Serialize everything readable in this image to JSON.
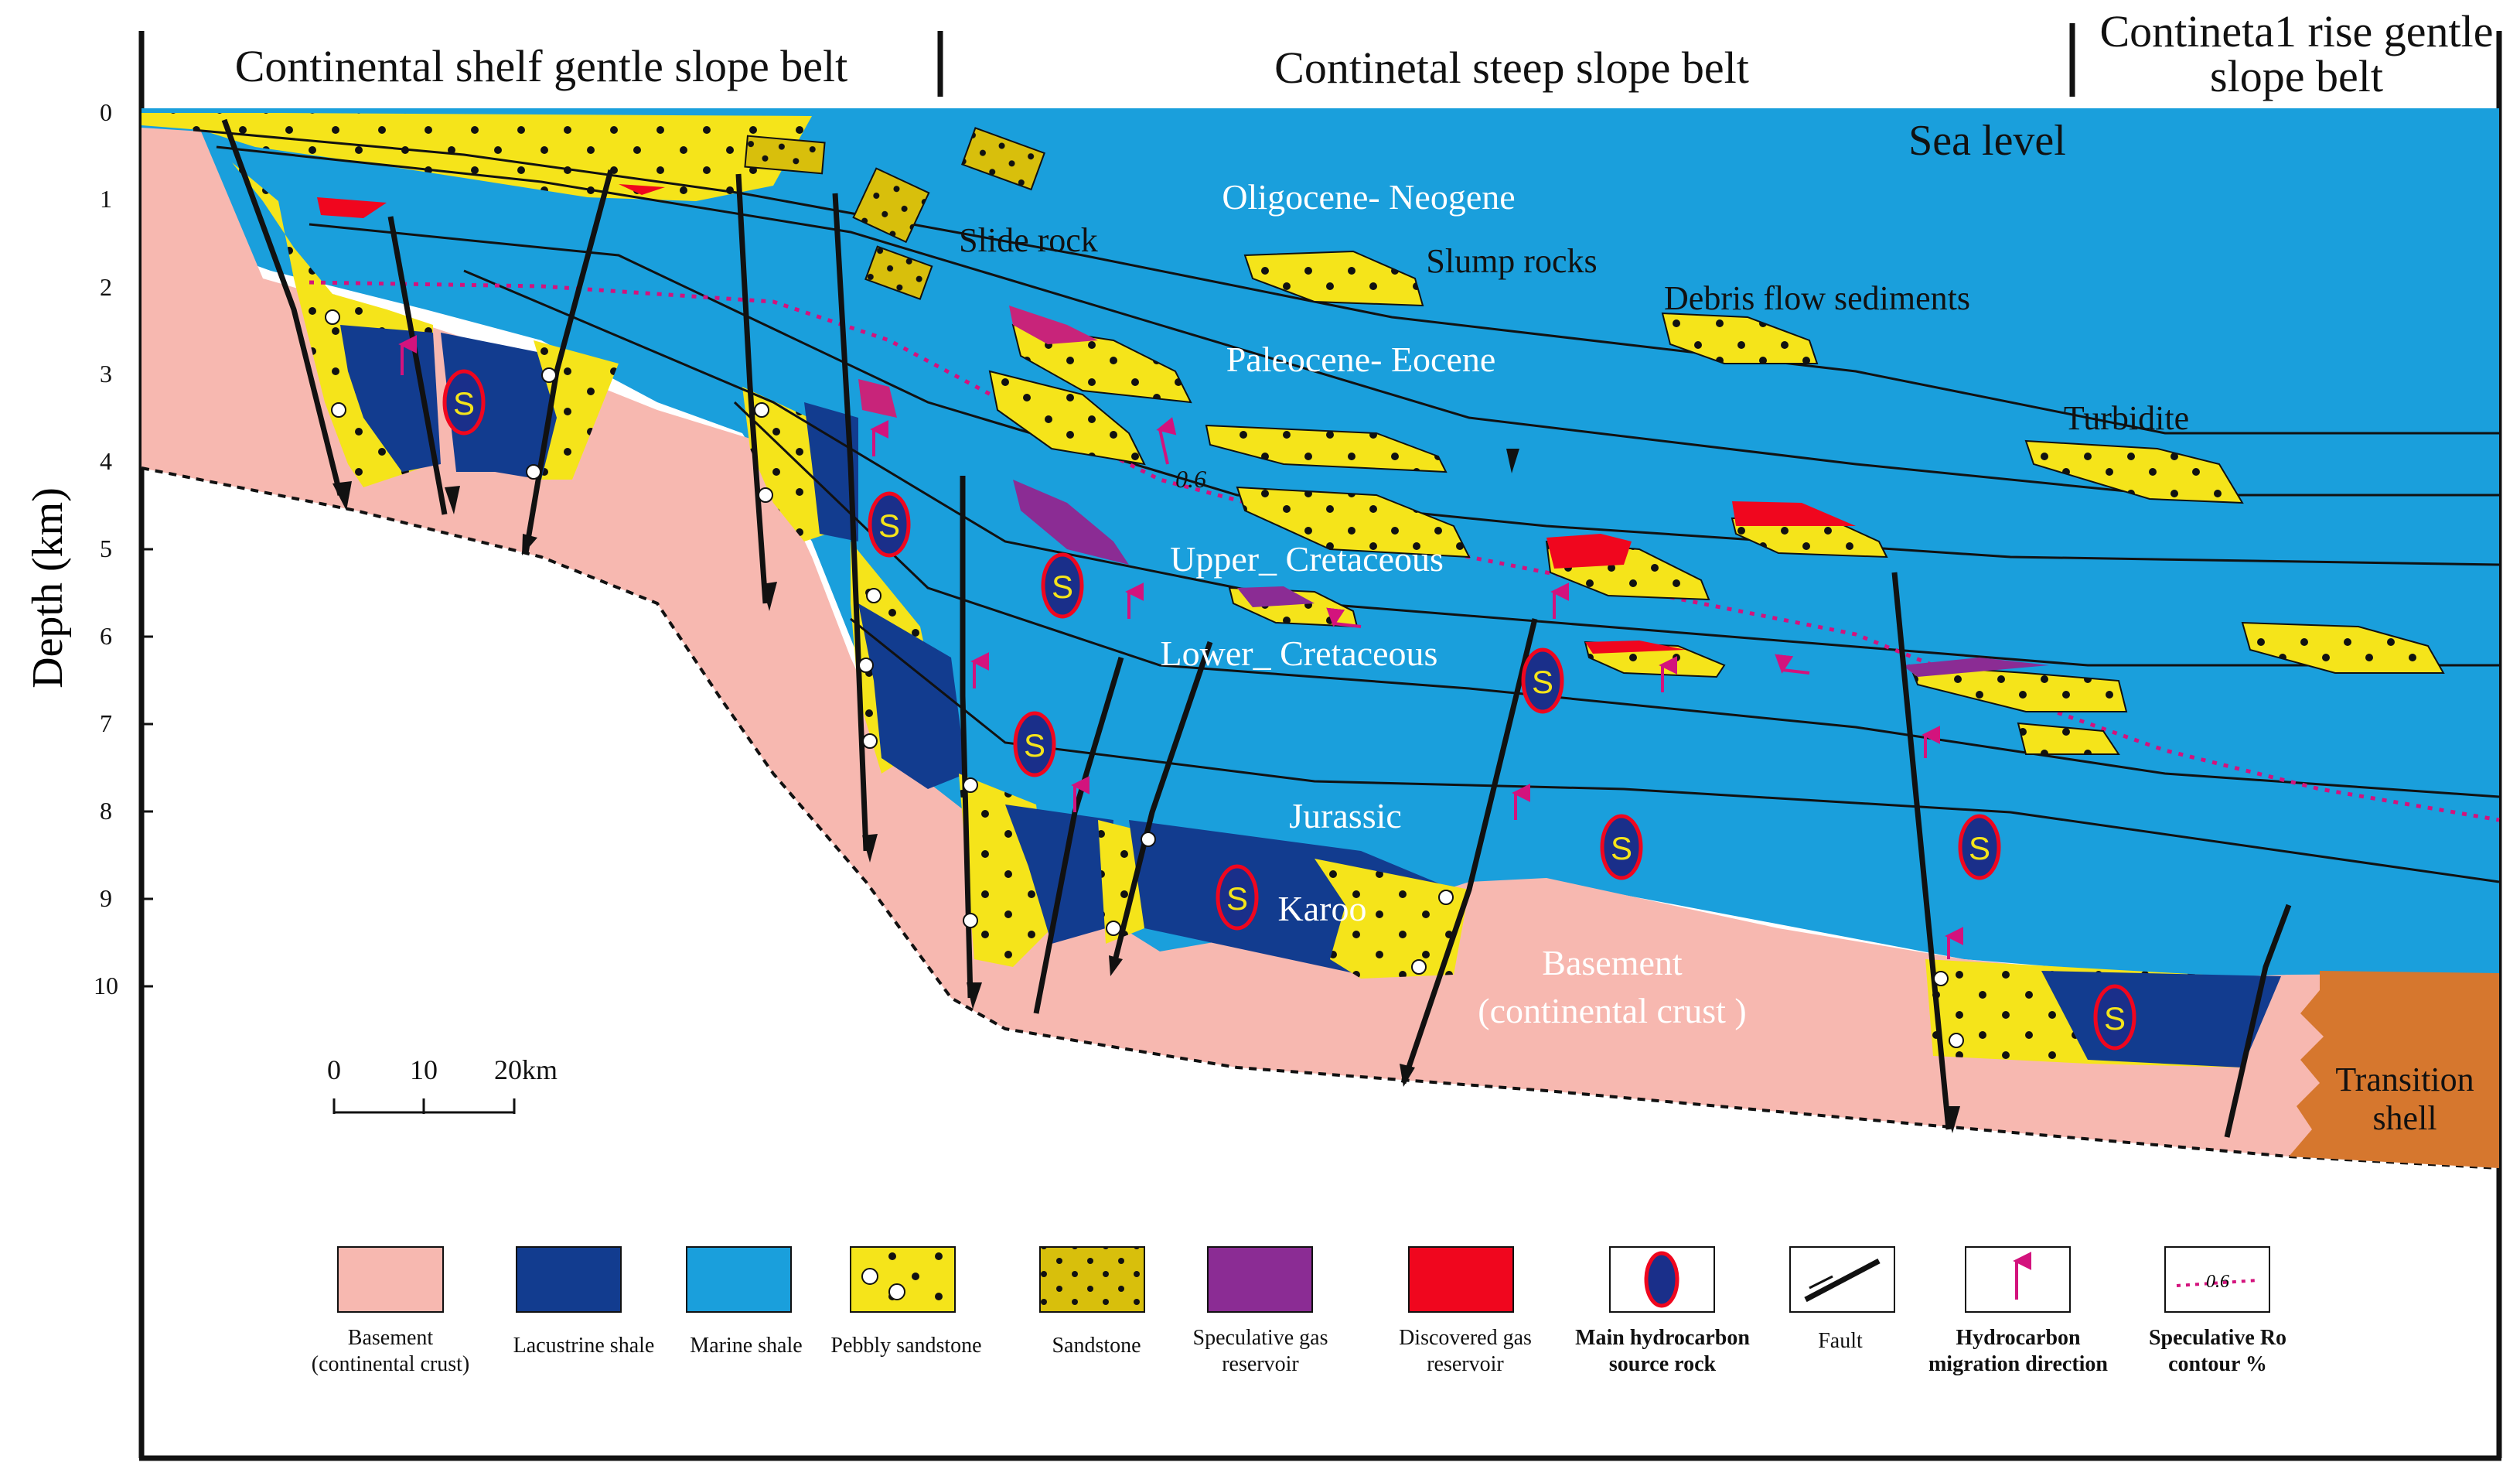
{
  "belts": {
    "shelf": "Continental shelf gentle slope belt",
    "steep": "Continetal steep slope belt",
    "rise_line1": "Contineta1 rise gentle",
    "rise_line2": "slope belt"
  },
  "axis": {
    "title": "Depth (km)",
    "ticks": [
      "0",
      "1",
      "2",
      "3",
      "4",
      "5",
      "6",
      "7",
      "8",
      "9",
      "10"
    ]
  },
  "labels": {
    "sea_level": "Sea level",
    "oligocene": "Oligocene- Neogene",
    "paleocene": "Paleocene- Eocene",
    "upper_cretaceous": "Upper_ Cretaceous",
    "lower_cretaceous": "Lower_ Cretaceous",
    "jurassic": "Jurassic",
    "karoo": "Karoo",
    "basement_line1": "Basement",
    "basement_line2": "(continental crust )",
    "transition_line1": "Transition",
    "transition_line2": "shell",
    "slide_rock": "Slide rock",
    "slump_rocks": "Slump rocks",
    "debris_flow": "Debris flow sediments",
    "turbidite": "Turbidite",
    "ro_contour": "0.6",
    "source_symbol": "S"
  },
  "scale_bar": {
    "ticks": [
      "0",
      "10",
      "20km"
    ]
  },
  "legend": {
    "items": [
      {
        "line1": "Basement",
        "line2": "(continental crust)",
        "color": "#f7b8b0"
      },
      {
        "line1": "Lacustrine shale",
        "line2": "",
        "color": "#123c8f"
      },
      {
        "line1": "Marine shale",
        "line2": "",
        "color": "#1a9fdc"
      },
      {
        "line1": "Pebbly sandstone",
        "line2": "",
        "color": "#f5e41a"
      },
      {
        "line1": "Sandstone",
        "line2": "",
        "color": "#d8bf0c"
      },
      {
        "line1": "Speculative gas",
        "line2": "reservoir",
        "color": "#8b2c94"
      },
      {
        "line1": "Discovered gas",
        "line2": "reservoir",
        "color": "#f0061e"
      },
      {
        "line1": "Main hydrocarbon",
        "line2": "source rock",
        "color": "#1a2f8a"
      },
      {
        "line1": "Fault",
        "line2": "",
        "color": "#111111"
      },
      {
        "line1": "Hydrocarbon",
        "line2": "migration direction",
        "color": "#d3137d"
      },
      {
        "line1": "Speculative Ro",
        "line2": "contour %",
        "color": "#d3137d"
      }
    ]
  },
  "colors": {
    "basement": "#f7b8b0",
    "marine_shale": "#1a9fdc",
    "lacustrine_shale": "#123c8f",
    "pebbly_sandstone": "#f5e41a",
    "sandstone": "#d8bf0c",
    "speculative_gas": "#8b2c94",
    "discovered_gas": "#f0061e",
    "transition": "#d6772e",
    "migration_arrow": "#d3137d",
    "sea_level_line": "#1a9fdc"
  }
}
